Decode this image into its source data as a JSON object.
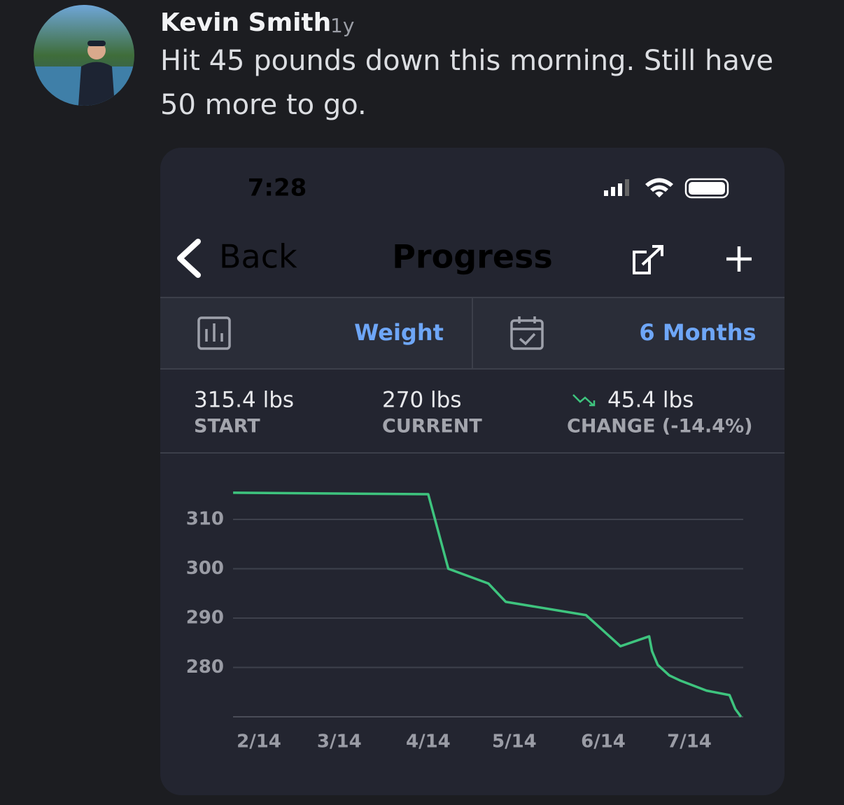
{
  "post": {
    "author": "Kevin Smith",
    "time": "1y",
    "text": "Hit 45 pounds down this morning. Still have 50 more to go."
  },
  "app": {
    "status_time": "7:28",
    "back": "Back",
    "title": "Progress",
    "metric": "Weight",
    "period": "6 Months"
  },
  "stats": [
    {
      "value": "315.4 lbs",
      "label": "START"
    },
    {
      "value": "270 lbs",
      "label": "CURRENT"
    },
    {
      "value": "45.4 lbs",
      "label": "CHANGE (-14.4%)"
    }
  ],
  "chart_data": {
    "type": "line",
    "x": [
      "2/5",
      "4/14",
      "4/21",
      "5/5",
      "5/11",
      "6/8",
      "6/16",
      "6/20",
      "6/30",
      "7/1",
      "7/3",
      "7/7",
      "7/11",
      "7/20",
      "7/28",
      "7/30",
      "8/1"
    ],
    "series": [
      {
        "name": "Weight",
        "color": "#3ec47e",
        "values": [
          315.4,
          315.1,
          300,
          297,
          293.3,
          290.6,
          286.4,
          284.3,
          286.3,
          283.3,
          280.5,
          278.4,
          277.3,
          275.3,
          274.4,
          271.6,
          270
        ]
      }
    ],
    "ylim": [
      270,
      320
    ],
    "yticks": [
      280,
      290,
      300,
      310
    ],
    "xticks": [
      "2/14",
      "3/14",
      "4/14",
      "5/14",
      "6/14",
      "7/14"
    ],
    "grid": true
  }
}
